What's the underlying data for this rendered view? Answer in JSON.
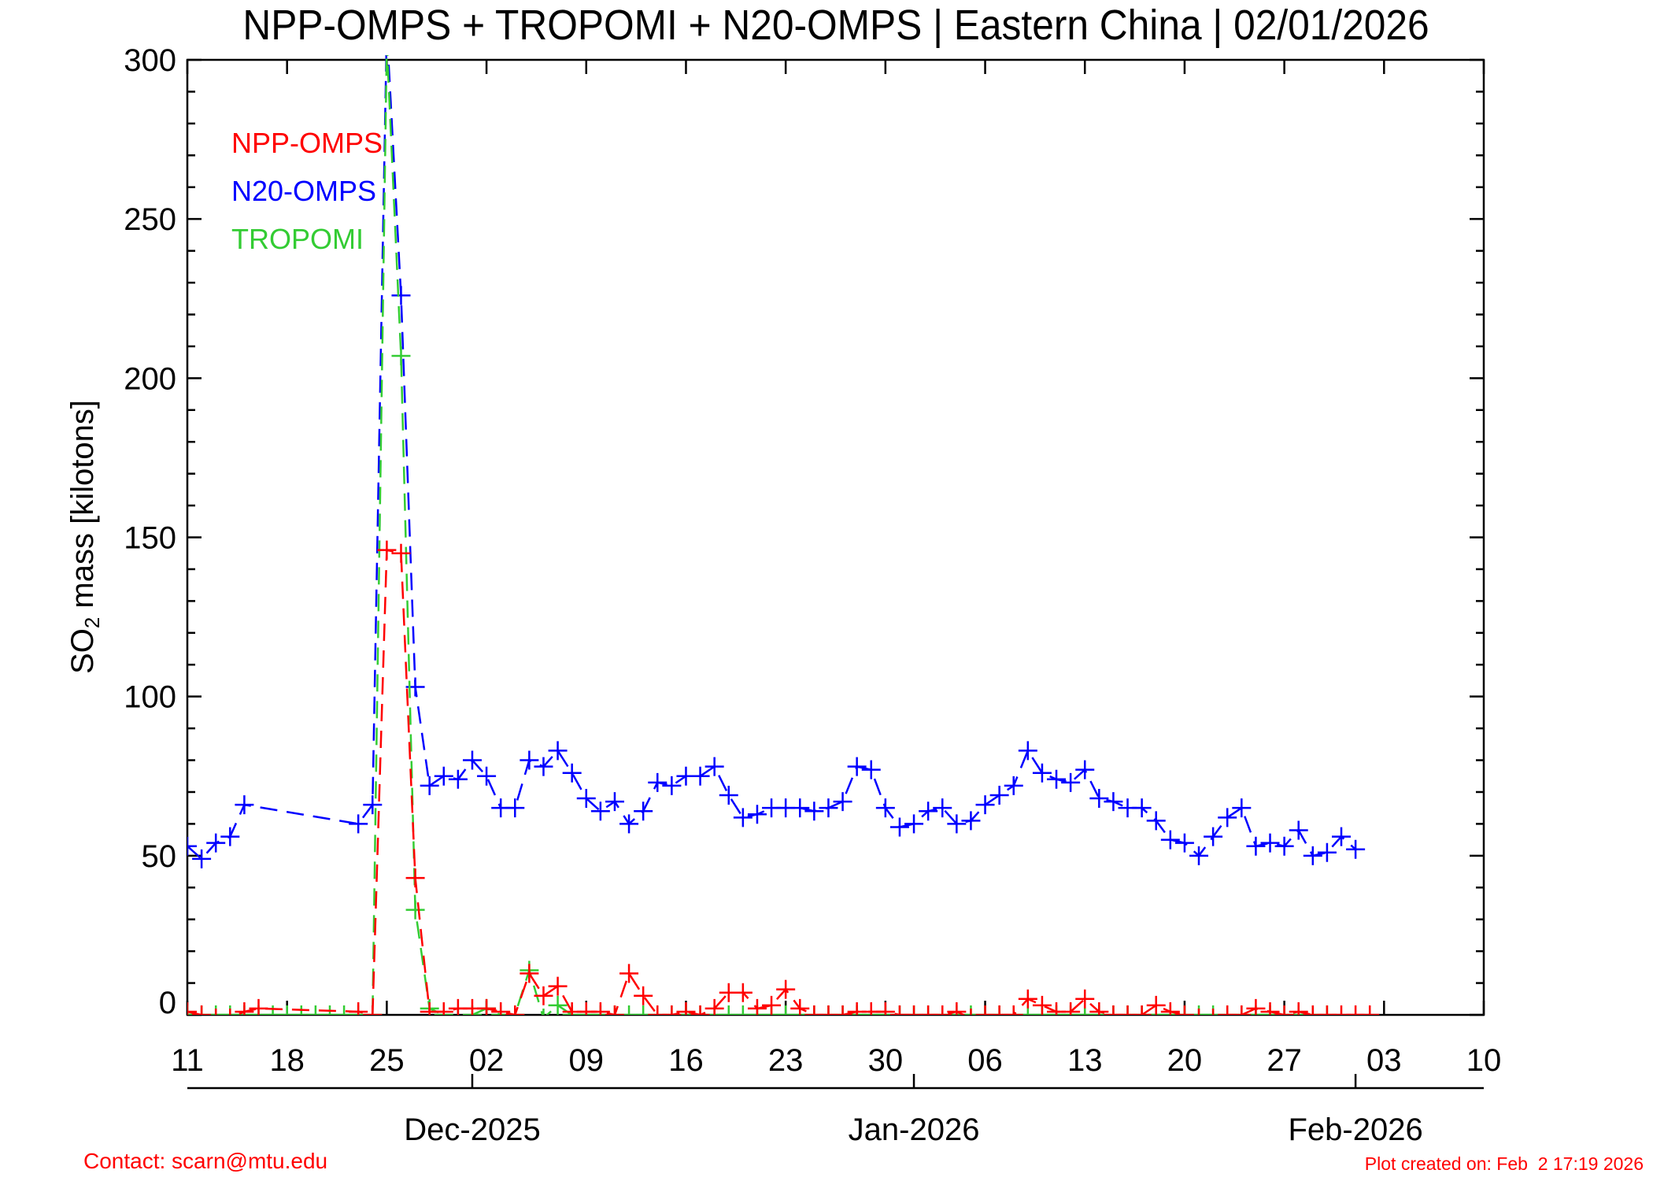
{
  "chart_data": {
    "type": "line",
    "title": "NPP-OMPS + TROPOMI + N20-OMPS | Eastern China | 02/01/2026",
    "ylabel_main": "SO",
    "ylabel_sub": "2",
    "ylabel_rest": " mass [kilotons]",
    "ylim": [
      0,
      300
    ],
    "yticks": [
      0,
      50,
      100,
      150,
      200,
      250,
      300
    ],
    "yminor_step": 10,
    "x_origin_date": "2025-11-11",
    "x_unit": "days since x_origin_date",
    "xlim": [
      0,
      91
    ],
    "xtick_days": [
      0,
      7,
      14,
      21,
      28,
      35,
      42,
      49,
      56,
      63,
      70,
      77,
      84,
      91
    ],
    "xtick_labels": [
      "11",
      "18",
      "25",
      "02",
      "09",
      "16",
      "23",
      "30",
      "06",
      "13",
      "20",
      "27",
      "03",
      "10"
    ],
    "month_ticks": [
      {
        "day": 20,
        "label": "Dec-2025"
      },
      {
        "day": 51,
        "label": "Jan-2026"
      },
      {
        "day": 82,
        "label": "Feb-2026"
      }
    ],
    "legend_position": "top-left",
    "series": [
      {
        "name": "NPP-OMPS",
        "color": "#ff0000",
        "x": [
          0,
          1,
          2,
          3,
          4,
          5,
          12,
          13,
          14,
          15,
          16,
          17,
          18,
          19,
          20,
          21,
          22,
          23,
          24,
          25,
          26,
          27,
          28,
          29,
          30,
          31,
          32,
          33,
          34,
          35,
          36,
          37,
          38,
          39,
          40,
          41,
          42,
          43,
          44,
          45,
          46,
          47,
          48,
          49,
          50,
          51,
          52,
          53,
          54,
          55,
          56,
          57,
          58,
          59,
          60,
          61,
          62,
          63,
          64,
          65,
          66,
          67,
          68,
          69,
          70,
          71,
          72,
          73,
          74,
          75,
          76,
          77,
          78,
          79,
          80,
          81,
          82,
          83
        ],
        "y": [
          1,
          0,
          -1,
          -1,
          1,
          2,
          1,
          0,
          146,
          145,
          43,
          1,
          1,
          2,
          2,
          2,
          1,
          0,
          13,
          6,
          9,
          1,
          1,
          1,
          0,
          13,
          6,
          0,
          0,
          1,
          0,
          2,
          7,
          7,
          2,
          3,
          8,
          2,
          0,
          0,
          0,
          1,
          1,
          1,
          0,
          0,
          0,
          0,
          1,
          -1,
          0,
          0,
          0,
          5,
          3,
          1,
          1,
          5,
          1,
          0,
          0,
          0,
          3,
          1,
          0,
          -1,
          -1,
          0,
          0,
          2,
          1,
          0,
          1,
          0,
          0,
          0,
          0,
          0
        ]
      },
      {
        "name": "N20-OMPS",
        "color": "#0000ff",
        "x": [
          0,
          1,
          2,
          3,
          4,
          12,
          13,
          14,
          15,
          16,
          17,
          18,
          19,
          20,
          21,
          22,
          23,
          24,
          25,
          26,
          27,
          28,
          29,
          30,
          31,
          32,
          33,
          34,
          35,
          36,
          37,
          38,
          39,
          40,
          41,
          42,
          43,
          44,
          45,
          46,
          47,
          48,
          49,
          50,
          51,
          52,
          53,
          54,
          55,
          56,
          57,
          58,
          59,
          60,
          61,
          62,
          63,
          64,
          65,
          66,
          67,
          68,
          69,
          70,
          71,
          72,
          73,
          74,
          75,
          76,
          77,
          78,
          79,
          80,
          81,
          82
        ],
        "y": [
          53,
          49,
          54,
          56,
          66,
          60,
          66,
          310,
          226,
          103,
          72,
          75,
          74,
          80,
          75,
          65,
          65,
          80,
          78,
          83,
          76,
          68,
          64,
          67,
          60,
          64,
          73,
          72,
          75,
          75,
          78,
          69,
          62,
          63,
          65,
          65,
          65,
          64,
          65,
          67,
          78,
          77,
          65,
          59,
          60,
          64,
          65,
          60,
          61,
          66,
          69,
          72,
          83,
          76,
          74,
          73,
          77,
          68,
          67,
          65,
          65,
          61,
          55,
          54,
          50,
          56,
          62,
          65,
          53,
          54,
          53,
          58,
          50,
          51,
          56,
          52
        ]
      },
      {
        "name": "TROPOMI",
        "color": "#33cc33",
        "x": [
          0,
          1,
          2,
          3,
          4,
          5,
          6,
          7,
          8,
          9,
          10,
          11,
          12,
          13,
          14,
          15,
          16,
          17,
          18,
          19,
          20,
          21,
          22,
          23,
          24,
          25,
          26,
          27,
          28,
          29,
          30,
          31,
          32,
          33,
          34,
          35,
          36,
          37,
          38,
          39,
          40,
          41,
          42,
          43,
          44,
          45,
          46,
          47,
          48,
          49,
          50,
          51,
          52,
          53,
          54,
          55,
          56,
          57,
          58,
          59,
          60,
          61,
          62,
          63,
          64,
          65,
          66,
          67,
          68,
          69,
          70,
          71,
          72,
          73,
          74,
          75,
          76,
          77,
          78,
          79,
          80
        ],
        "y": [
          0,
          0,
          0,
          0,
          0,
          0,
          0,
          0,
          0,
          0,
          0,
          0,
          0,
          0,
          305,
          207,
          33,
          2,
          0,
          -1,
          0,
          2,
          0,
          0,
          14,
          -1,
          3,
          0,
          0,
          0,
          0,
          0,
          0,
          0,
          0,
          0,
          0,
          0,
          0,
          0,
          0,
          0,
          0,
          0,
          0,
          0,
          0,
          0,
          0,
          0,
          0,
          0,
          0,
          0,
          0,
          0,
          0,
          0,
          0,
          0,
          0,
          0,
          0,
          0,
          0,
          0,
          0,
          0,
          0,
          0,
          0,
          0,
          0,
          0,
          0,
          0,
          0,
          0,
          0,
          0,
          0
        ]
      }
    ]
  },
  "footer": {
    "contact": "Contact: scarn@mtu.edu",
    "created": "Plot created on: Feb  2 17:19 2026"
  }
}
